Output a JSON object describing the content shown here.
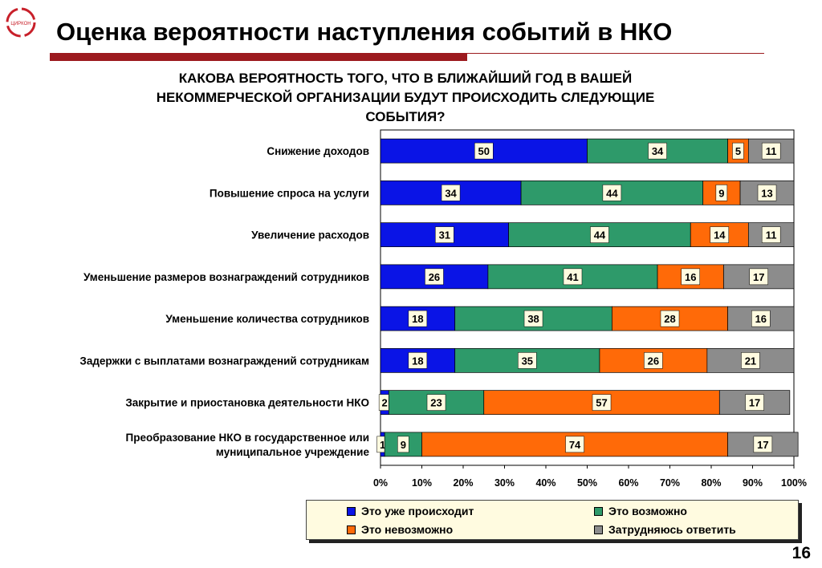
{
  "slide": {
    "title": "Оценка вероятности наступления событий в НКО",
    "page_number": "16",
    "logo_text": "ЦИРКОН"
  },
  "chart_data": {
    "type": "bar",
    "orientation": "horizontal",
    "stacked": true,
    "title_lines": [
      "КАКОВА ВЕРОЯТНОСТЬ ТОГО, ЧТО В БЛИЖАЙШИЙ ГОД В ВАШЕЙ",
      "НЕКОММЕРЧЕСКОЙ ОРГАНИЗАЦИИ БУДУТ ПРОИСХОДИТЬ СЛЕДУЮЩИЕ",
      "СОБЫТИЯ?"
    ],
    "categories": [
      [
        "Снижение доходов"
      ],
      [
        "Повышение спроса на услуги"
      ],
      [
        "Увеличение расходов"
      ],
      [
        "Уменьшение размеров вознаграждений сотрудников"
      ],
      [
        "Уменьшение количества сотрудников"
      ],
      [
        "Задержки с выплатами вознаграждений сотрудникам"
      ],
      [
        "Закрытие и приостановка деятельности НКО"
      ],
      [
        "Преобразование НКО в государственное или",
        "муниципальное учреждение"
      ]
    ],
    "series": [
      {
        "name": "Это уже происходит",
        "color": "#0a14e6",
        "values": [
          50,
          34,
          31,
          26,
          18,
          18,
          2,
          1
        ]
      },
      {
        "name": "Это возможно",
        "color": "#2e9a6a",
        "values": [
          34,
          44,
          44,
          41,
          38,
          35,
          23,
          9
        ]
      },
      {
        "name": "Это невозможно",
        "color": "#ff6a08",
        "values": [
          5,
          9,
          14,
          16,
          28,
          26,
          57,
          74
        ]
      },
      {
        "name": "Затрудняюсь ответить",
        "color": "#8c8c8c",
        "values": [
          11,
          13,
          11,
          17,
          16,
          21,
          17,
          17
        ]
      }
    ],
    "xlim": [
      0,
      100
    ],
    "x_ticks": [
      "0%",
      "10%",
      "20%",
      "30%",
      "40%",
      "50%",
      "60%",
      "70%",
      "80%",
      "90%",
      "100%"
    ],
    "legend_position": "bottom",
    "grid": false
  }
}
